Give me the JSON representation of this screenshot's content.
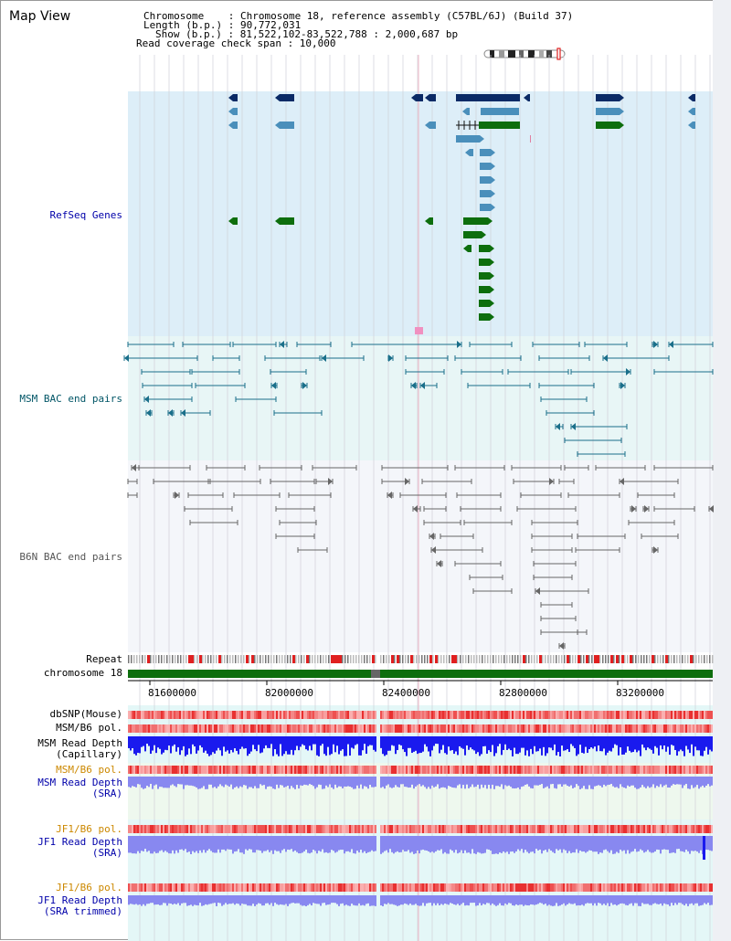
{
  "title": "Map View",
  "info": {
    "chromosome": "Chromosome    : Chromosome 18, reference assembly (C57BL/6J) (Build 37)",
    "length": "Length (b.p.) : 90,772,031",
    "show": "Show (b.p.) : 81,522,102-83,522,788 : 2,000,687 bp",
    "span": "Read coverage check span : 10,000"
  },
  "tracks": {
    "refseq": "RefSeq Genes",
    "msm_bac": "MSM BAC end pairs",
    "b6n_bac": "B6N BAC end pairs",
    "repeat": "Repeat",
    "chromosome": "chromosome 18",
    "dbsnp": "dbSNP(Mouse)",
    "msm_pol": "MSM/B6 pol.",
    "msm_depth_cap": "MSM Read Depth\n(Capillary)",
    "msm_pol2": "MSM/B6 pol.",
    "msm_depth_sra": "MSM Read Depth\n(SRA)",
    "jf1_pol": "JF1/B6 pol.",
    "jf1_depth_sra": "JF1 Read Depth\n(SRA)",
    "jf1_pol2": "JF1/B6 pol.",
    "jf1_depth_trim": "JF1 Read Depth\n(SRA trimmed)"
  },
  "axis_ticks": [
    "81600000",
    "82000000",
    "82400000",
    "82800000",
    "83200000"
  ],
  "colors": {
    "refseq_bg": "#ddeef8",
    "bac_bg": "#e8f6f6",
    "gene_navy": "#0a2a66",
    "gene_blue": "#4a8fbb",
    "gene_green": "#0d6e0d",
    "bac_line": "#1a6f8a",
    "b6n_line": "#666666",
    "chrom": "#0d6e0d",
    "snp": "#e85050",
    "depth_blue": "#1a1aee",
    "depth_lav": "#8888f0"
  }
}
